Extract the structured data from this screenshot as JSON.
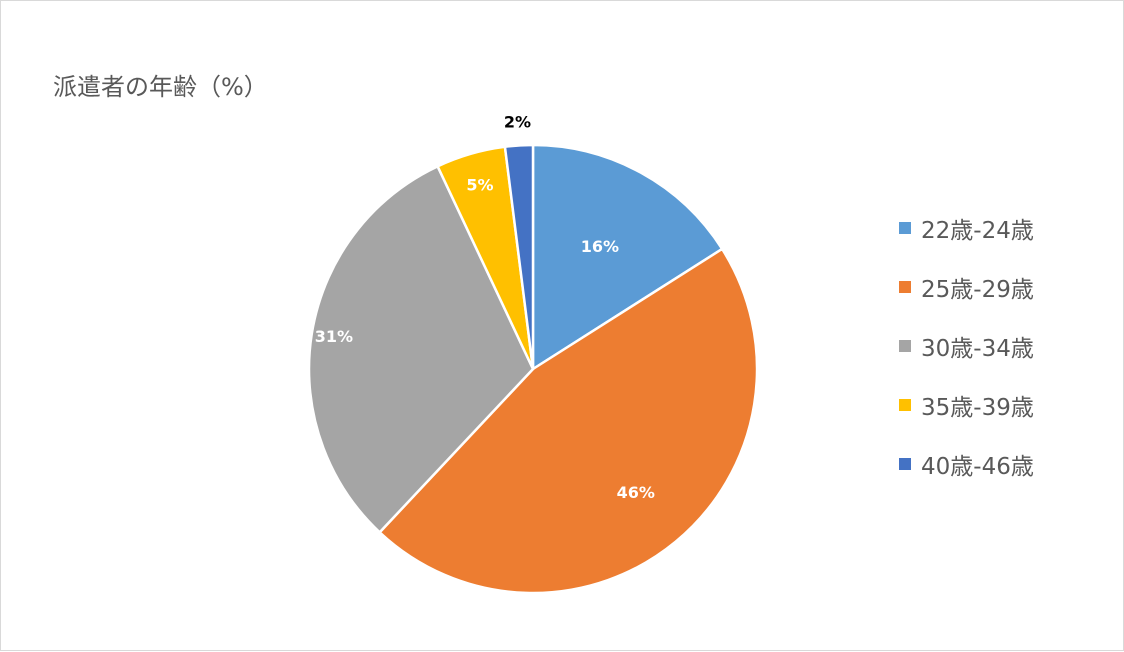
{
  "chart_data": {
    "type": "pie",
    "title": "派遣者の年齢（%）",
    "categories": [
      "22歳-24歳",
      "25歳-29歳",
      "30歳-34歳",
      "35歳-39歳",
      "40歳-46歳"
    ],
    "values": [
      16,
      46,
      31,
      5,
      2
    ],
    "labels": [
      "16%",
      "46%",
      "31%",
      "5%",
      "2%"
    ],
    "colors": [
      "#5b9bd5",
      "#ed7d31",
      "#a5a5a5",
      "#ffc000",
      "#4472c4"
    ],
    "legend_position": "right"
  }
}
